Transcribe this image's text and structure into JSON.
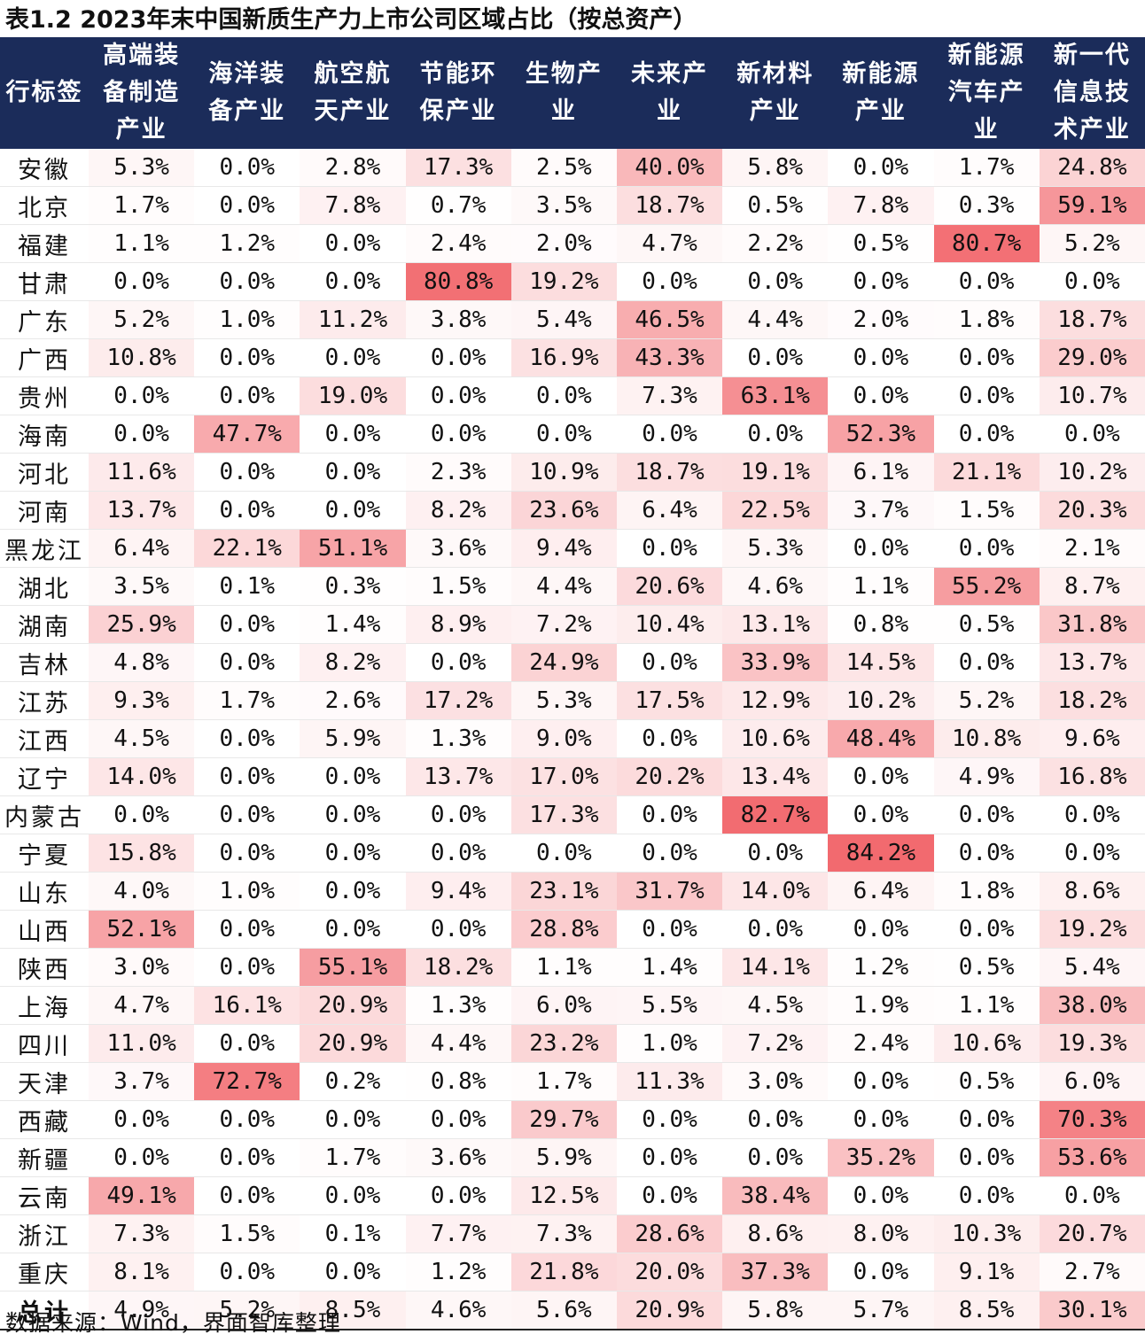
{
  "title": "表1.2 2023年末中国新质生产力上市公司区域占比（按总资产）",
  "source": "数据来源：Wind，界面智库整理",
  "header_color": "#1b2c5a",
  "heat_color": "#f26a6f",
  "row_label_header": "行标签",
  "columns": [
    "高端装备制造产业",
    "海洋装备产业",
    "航空航天产业",
    "节能环保产业",
    "生物产业",
    "未来产业",
    "新材料产业",
    "新能源产业",
    "新能源汽车产业",
    "新一代信息技术产业"
  ],
  "rows": [
    {
      "region": "安徽",
      "values": [
        "5.3%",
        "0.0%",
        "2.8%",
        "17.3%",
        "2.5%",
        "40.0%",
        "5.8%",
        "0.0%",
        "1.7%",
        "24.8%"
      ]
    },
    {
      "region": "北京",
      "values": [
        "1.7%",
        "0.0%",
        "7.8%",
        "0.7%",
        "3.5%",
        "18.7%",
        "0.5%",
        "7.8%",
        "0.3%",
        "59.1%"
      ]
    },
    {
      "region": "福建",
      "values": [
        "1.1%",
        "1.2%",
        "0.0%",
        "2.4%",
        "2.0%",
        "4.7%",
        "2.2%",
        "0.5%",
        "80.7%",
        "5.2%"
      ]
    },
    {
      "region": "甘肃",
      "values": [
        "0.0%",
        "0.0%",
        "0.0%",
        "80.8%",
        "19.2%",
        "0.0%",
        "0.0%",
        "0.0%",
        "0.0%",
        "0.0%"
      ]
    },
    {
      "region": "广东",
      "values": [
        "5.2%",
        "1.0%",
        "11.2%",
        "3.8%",
        "5.4%",
        "46.5%",
        "4.4%",
        "2.0%",
        "1.8%",
        "18.7%"
      ]
    },
    {
      "region": "广西",
      "values": [
        "10.8%",
        "0.0%",
        "0.0%",
        "0.0%",
        "16.9%",
        "43.3%",
        "0.0%",
        "0.0%",
        "0.0%",
        "29.0%"
      ]
    },
    {
      "region": "贵州",
      "values": [
        "0.0%",
        "0.0%",
        "19.0%",
        "0.0%",
        "0.0%",
        "7.3%",
        "63.1%",
        "0.0%",
        "0.0%",
        "10.7%"
      ]
    },
    {
      "region": "海南",
      "values": [
        "0.0%",
        "47.7%",
        "0.0%",
        "0.0%",
        "0.0%",
        "0.0%",
        "0.0%",
        "52.3%",
        "0.0%",
        "0.0%"
      ]
    },
    {
      "region": "河北",
      "values": [
        "11.6%",
        "0.0%",
        "0.0%",
        "2.3%",
        "10.9%",
        "18.7%",
        "19.1%",
        "6.1%",
        "21.1%",
        "10.2%"
      ]
    },
    {
      "region": "河南",
      "values": [
        "13.7%",
        "0.0%",
        "0.0%",
        "8.2%",
        "23.6%",
        "6.4%",
        "22.5%",
        "3.7%",
        "1.5%",
        "20.3%"
      ]
    },
    {
      "region": "黑龙江",
      "values": [
        "6.4%",
        "22.1%",
        "51.1%",
        "3.6%",
        "9.4%",
        "0.0%",
        "5.3%",
        "0.0%",
        "0.0%",
        "2.1%"
      ]
    },
    {
      "region": "湖北",
      "values": [
        "3.5%",
        "0.1%",
        "0.3%",
        "1.5%",
        "4.4%",
        "20.6%",
        "4.6%",
        "1.1%",
        "55.2%",
        "8.7%"
      ]
    },
    {
      "region": "湖南",
      "values": [
        "25.9%",
        "0.0%",
        "1.4%",
        "8.9%",
        "7.2%",
        "10.4%",
        "13.1%",
        "0.8%",
        "0.5%",
        "31.8%"
      ]
    },
    {
      "region": "吉林",
      "values": [
        "4.8%",
        "0.0%",
        "8.2%",
        "0.0%",
        "24.9%",
        "0.0%",
        "33.9%",
        "14.5%",
        "0.0%",
        "13.7%"
      ]
    },
    {
      "region": "江苏",
      "values": [
        "9.3%",
        "1.7%",
        "2.6%",
        "17.2%",
        "5.3%",
        "17.5%",
        "12.9%",
        "10.2%",
        "5.2%",
        "18.2%"
      ]
    },
    {
      "region": "江西",
      "values": [
        "4.5%",
        "0.0%",
        "5.9%",
        "1.3%",
        "9.0%",
        "0.0%",
        "10.6%",
        "48.4%",
        "10.8%",
        "9.6%"
      ]
    },
    {
      "region": "辽宁",
      "values": [
        "14.0%",
        "0.0%",
        "0.0%",
        "13.7%",
        "17.0%",
        "20.2%",
        "13.4%",
        "0.0%",
        "4.9%",
        "16.8%"
      ]
    },
    {
      "region": "内蒙古",
      "values": [
        "0.0%",
        "0.0%",
        "0.0%",
        "0.0%",
        "17.3%",
        "0.0%",
        "82.7%",
        "0.0%",
        "0.0%",
        "0.0%"
      ]
    },
    {
      "region": "宁夏",
      "values": [
        "15.8%",
        "0.0%",
        "0.0%",
        "0.0%",
        "0.0%",
        "0.0%",
        "0.0%",
        "84.2%",
        "0.0%",
        "0.0%"
      ]
    },
    {
      "region": "山东",
      "values": [
        "4.0%",
        "1.0%",
        "0.0%",
        "9.4%",
        "23.1%",
        "31.7%",
        "14.0%",
        "6.4%",
        "1.8%",
        "8.6%"
      ]
    },
    {
      "region": "山西",
      "values": [
        "52.1%",
        "0.0%",
        "0.0%",
        "0.0%",
        "28.8%",
        "0.0%",
        "0.0%",
        "0.0%",
        "0.0%",
        "19.2%"
      ]
    },
    {
      "region": "陕西",
      "values": [
        "3.0%",
        "0.0%",
        "55.1%",
        "18.2%",
        "1.1%",
        "1.4%",
        "14.1%",
        "1.2%",
        "0.5%",
        "5.4%"
      ]
    },
    {
      "region": "上海",
      "values": [
        "4.7%",
        "16.1%",
        "20.9%",
        "1.3%",
        "6.0%",
        "5.5%",
        "4.5%",
        "1.9%",
        "1.1%",
        "38.0%"
      ]
    },
    {
      "region": "四川",
      "values": [
        "11.0%",
        "0.0%",
        "20.9%",
        "4.4%",
        "23.2%",
        "1.0%",
        "7.2%",
        "2.4%",
        "10.6%",
        "19.3%"
      ]
    },
    {
      "region": "天津",
      "values": [
        "3.7%",
        "72.7%",
        "0.2%",
        "0.8%",
        "1.7%",
        "11.3%",
        "3.0%",
        "0.0%",
        "0.5%",
        "6.0%"
      ]
    },
    {
      "region": "西藏",
      "values": [
        "0.0%",
        "0.0%",
        "0.0%",
        "0.0%",
        "29.7%",
        "0.0%",
        "0.0%",
        "0.0%",
        "0.0%",
        "70.3%"
      ]
    },
    {
      "region": "新疆",
      "values": [
        "0.0%",
        "0.0%",
        "1.7%",
        "3.6%",
        "5.9%",
        "0.0%",
        "0.0%",
        "35.2%",
        "0.0%",
        "53.6%"
      ]
    },
    {
      "region": "云南",
      "values": [
        "49.1%",
        "0.0%",
        "0.0%",
        "0.0%",
        "12.5%",
        "0.0%",
        "38.4%",
        "0.0%",
        "0.0%",
        "0.0%"
      ]
    },
    {
      "region": "浙江",
      "values": [
        "7.3%",
        "1.5%",
        "0.1%",
        "7.7%",
        "7.3%",
        "28.6%",
        "8.6%",
        "8.0%",
        "10.3%",
        "20.7%"
      ]
    },
    {
      "region": "重庆",
      "values": [
        "8.1%",
        "0.0%",
        "0.0%",
        "1.2%",
        "21.8%",
        "20.0%",
        "37.3%",
        "0.0%",
        "9.1%",
        "2.7%"
      ]
    }
  ],
  "total": {
    "region": "总计",
    "values": [
      "4.9%",
      "5.2%",
      "8.5%",
      "4.6%",
      "5.6%",
      "20.9%",
      "5.8%",
      "5.7%",
      "8.5%",
      "30.1%"
    ]
  }
}
